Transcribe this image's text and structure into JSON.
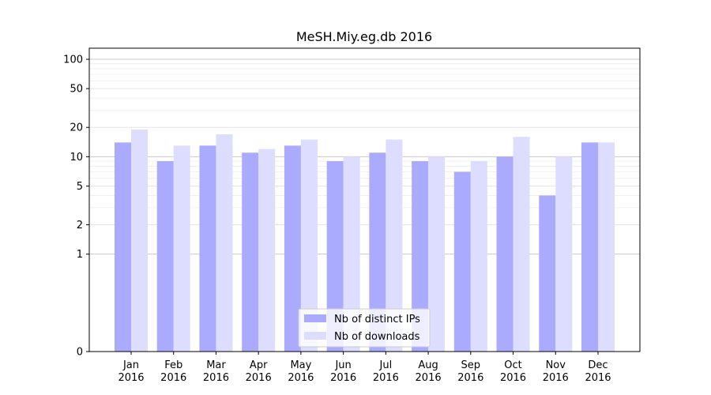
{
  "chart_data": {
    "type": "bar",
    "title": "MeSH.Miy.eg.db 2016",
    "xlabel": "",
    "ylabel": "",
    "yscale": "symlog",
    "ylim": [
      0,
      130
    ],
    "y_ticks": [
      0,
      1,
      2,
      5,
      10,
      20,
      50,
      100
    ],
    "grid": "horizontal",
    "legend_position": "bottom-center",
    "categories": [
      [
        "Jan",
        "2016"
      ],
      [
        "Feb",
        "2016"
      ],
      [
        "Mar",
        "2016"
      ],
      [
        "Apr",
        "2016"
      ],
      [
        "May",
        "2016"
      ],
      [
        "Jun",
        "2016"
      ],
      [
        "Jul",
        "2016"
      ],
      [
        "Aug",
        "2016"
      ],
      [
        "Sep",
        "2016"
      ],
      [
        "Oct",
        "2016"
      ],
      [
        "Nov",
        "2016"
      ],
      [
        "Dec",
        "2016"
      ]
    ],
    "series": [
      {
        "name": "Nb of distinct IPs",
        "color": "#aaaaff",
        "values": [
          14,
          9,
          13,
          11,
          13,
          9,
          11,
          9,
          7,
          10,
          4,
          14
        ]
      },
      {
        "name": "Nb of downloads",
        "color": "#ddddff",
        "values": [
          19,
          13,
          17,
          12,
          15,
          10,
          15,
          10,
          9,
          16,
          10,
          14
        ]
      }
    ]
  }
}
